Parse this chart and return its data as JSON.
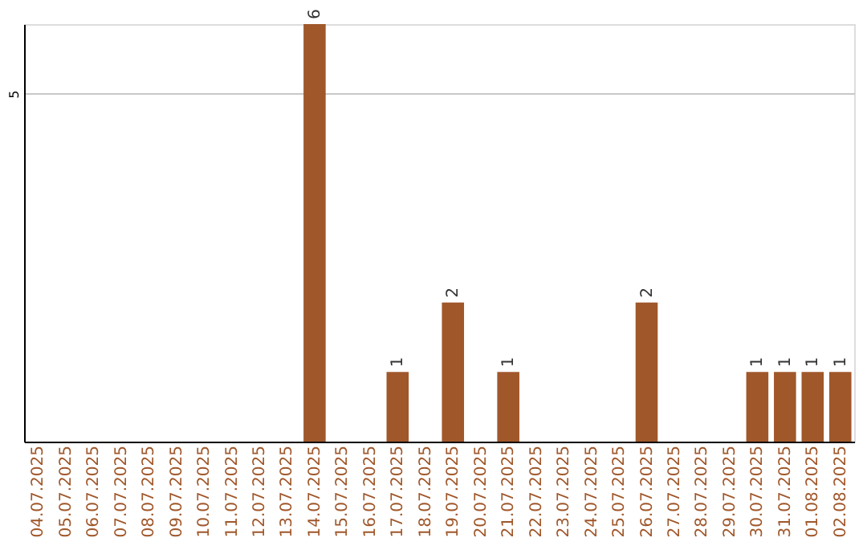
{
  "chart_data": {
    "type": "bar",
    "categories": [
      "04.07.2025",
      "05.07.2025",
      "06.07.2025",
      "07.07.2025",
      "08.07.2025",
      "09.07.2025",
      "10.07.2025",
      "11.07.2025",
      "12.07.2025",
      "13.07.2025",
      "14.07.2025",
      "15.07.2025",
      "16.07.2025",
      "17.07.2025",
      "18.07.2025",
      "19.07.2025",
      "20.07.2025",
      "21.07.2025",
      "22.07.2025",
      "23.07.2025",
      "24.07.2025",
      "25.07.2025",
      "26.07.2025",
      "27.07.2025",
      "28.07.2025",
      "29.07.2025",
      "30.07.2025",
      "31.07.2025",
      "01.08.2025",
      "02.08.2025"
    ],
    "values": [
      null,
      null,
      null,
      null,
      null,
      null,
      null,
      null,
      null,
      null,
      6,
      null,
      null,
      1,
      null,
      2,
      null,
      1,
      null,
      null,
      null,
      null,
      2,
      null,
      null,
      null,
      1,
      1,
      1,
      1
    ],
    "color": "#a0572a",
    "ylim": [
      0,
      6
    ],
    "yticks": [
      5
    ],
    "grid": "y",
    "data_labels": true
  }
}
